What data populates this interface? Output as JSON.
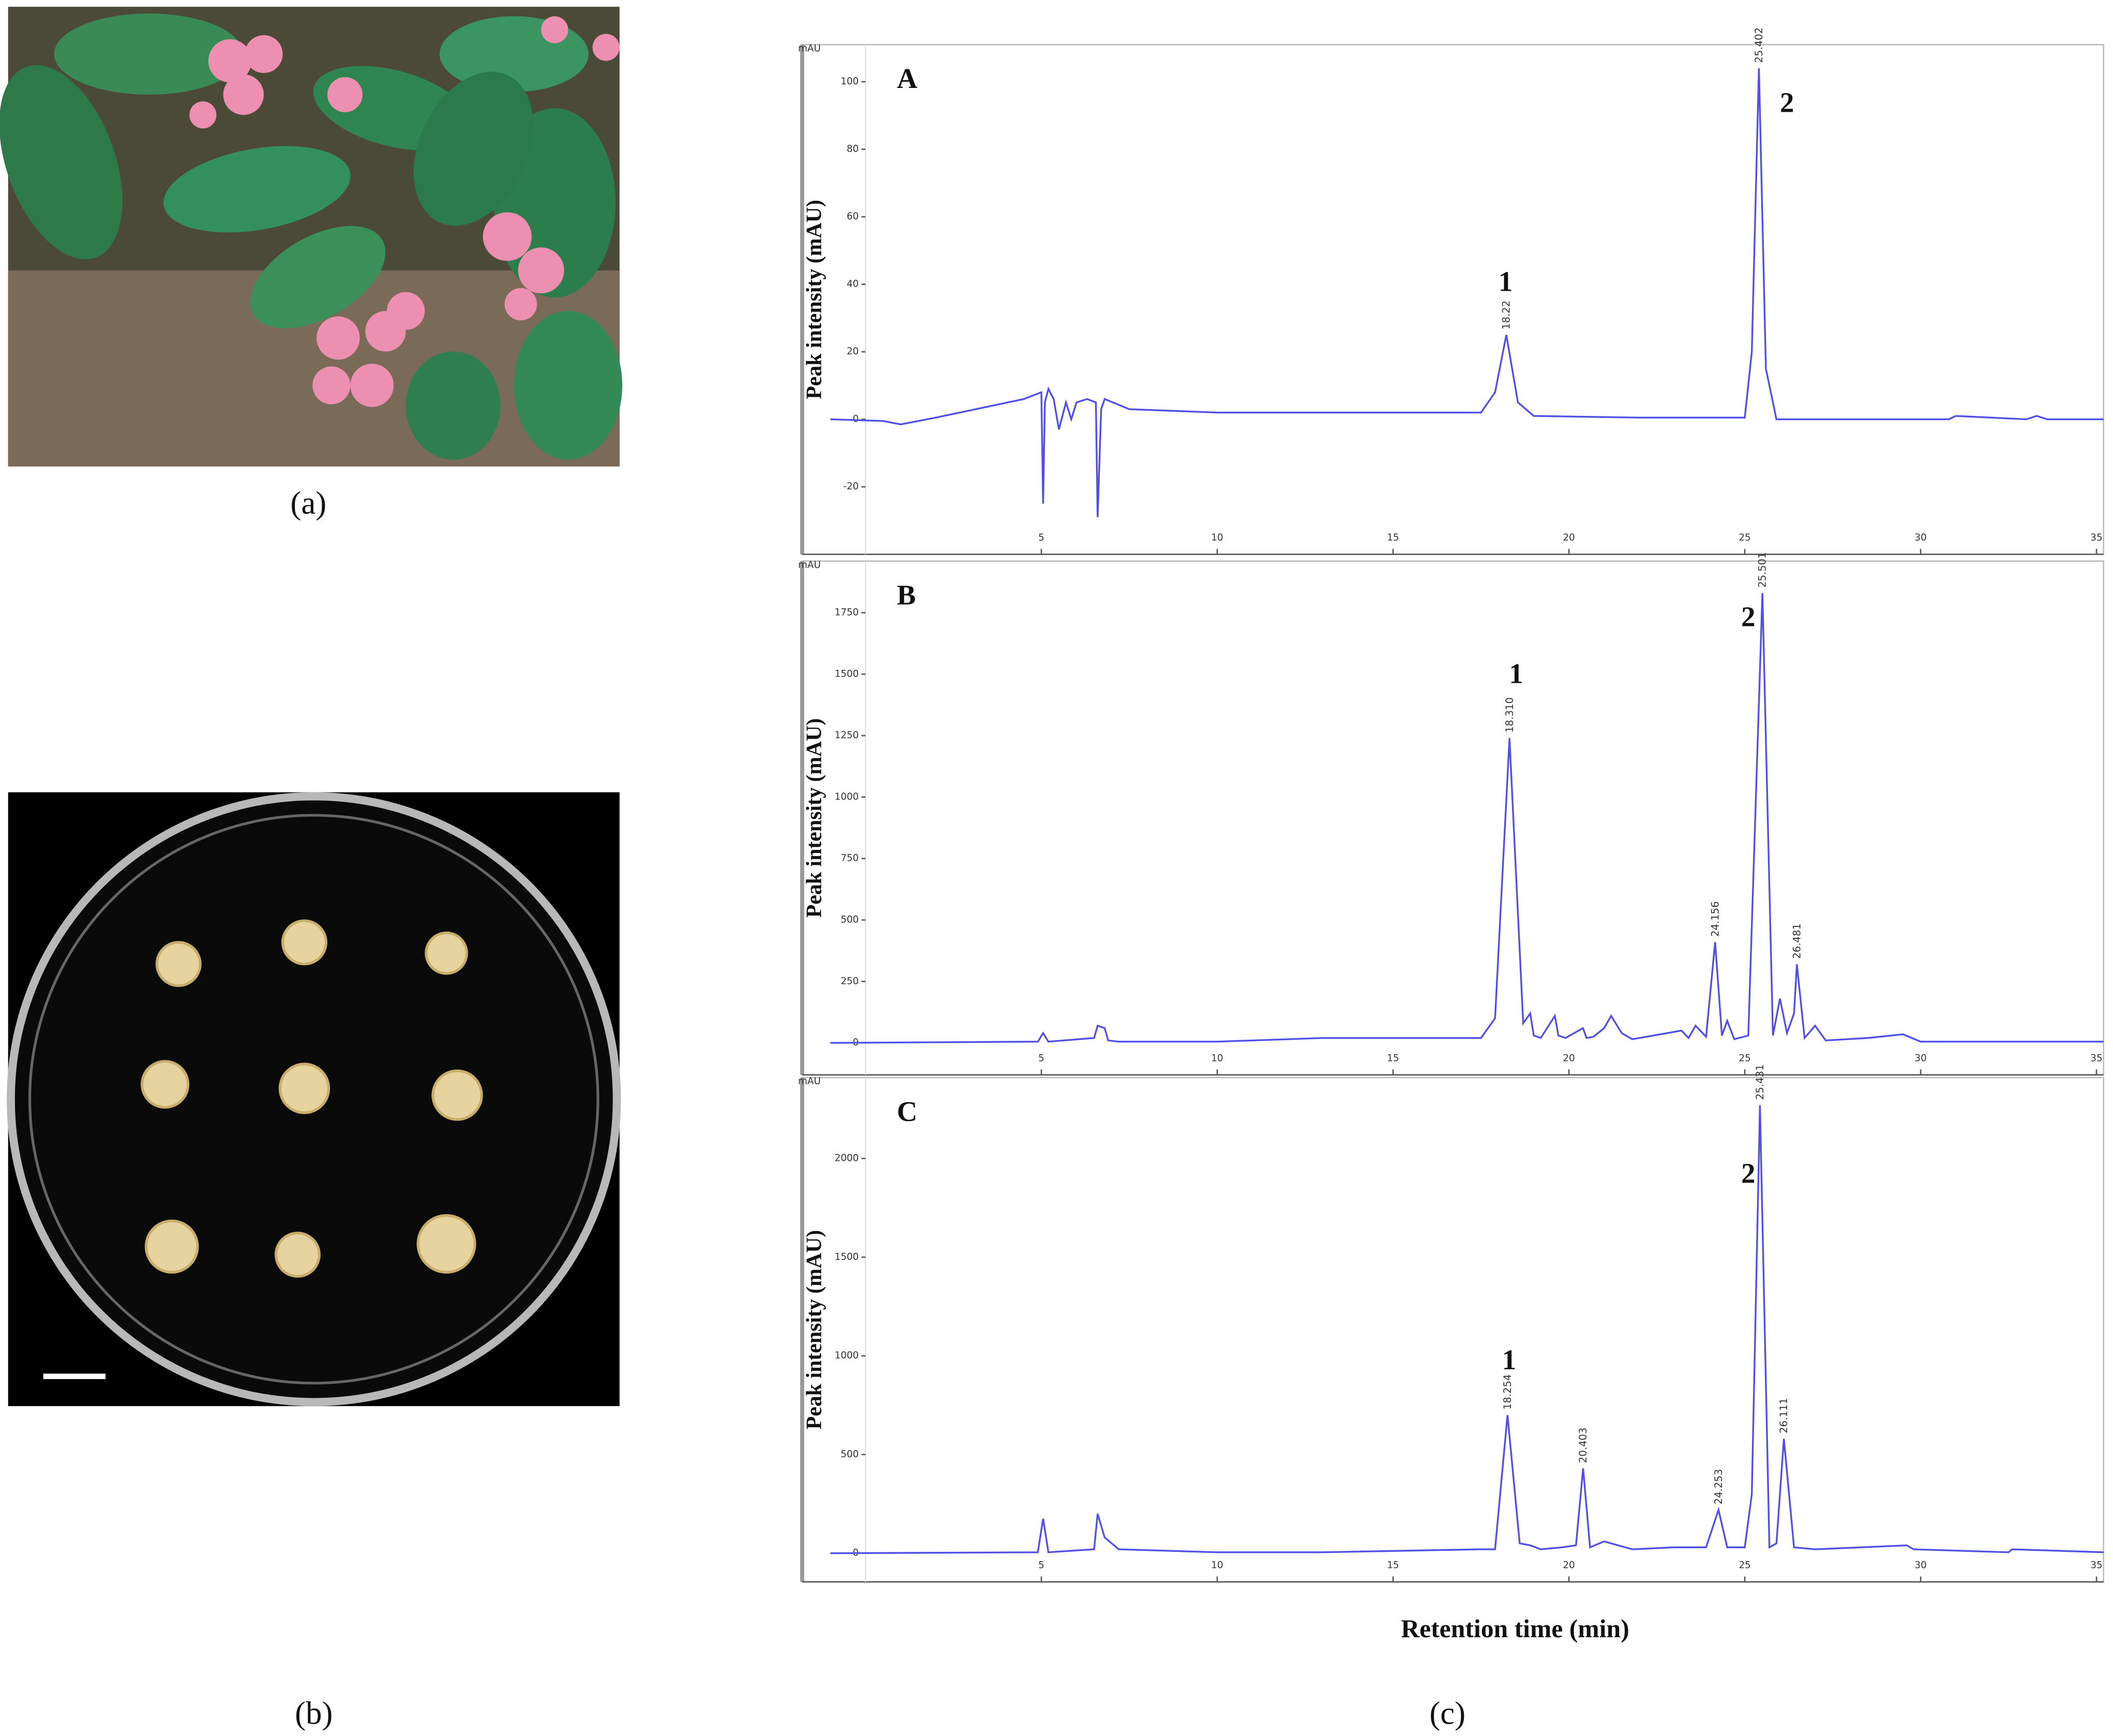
{
  "chart_data": [
    {
      "type": "line",
      "title": "A",
      "unit": "mAU",
      "y_label": "Peak intensity (mAU)",
      "color": "#5050e8",
      "xlim": [
        -1.8,
        35.2
      ],
      "xticks": [
        5,
        10,
        15,
        20,
        25,
        30,
        35
      ],
      "ylim": [
        -40,
        111
      ],
      "yticks": [
        -20,
        0,
        20,
        40,
        60,
        80,
        100
      ],
      "x": [
        -1,
        0.5,
        1,
        2,
        4.5,
        5,
        5.05,
        5.1,
        5.2,
        5.35,
        5.5,
        5.7,
        5.85,
        6.0,
        6.3,
        6.55,
        6.6,
        6.7,
        6.8,
        7.5,
        10,
        15,
        17.5,
        17.9,
        18.22,
        18.55,
        19,
        22,
        25,
        25.2,
        25.402,
        25.6,
        25.9,
        28,
        30.8,
        31,
        33,
        33.3,
        33.6,
        35.2
      ],
      "values": [
        0,
        -0.5,
        -1.5,
        0.5,
        6,
        8,
        -25,
        5,
        9,
        6,
        -3,
        5,
        0,
        5,
        6,
        5,
        -29,
        3,
        6,
        3,
        2,
        2,
        2,
        8,
        25,
        5,
        1,
        0.5,
        0.5,
        20,
        104,
        15,
        0,
        0,
        0,
        1,
        0,
        1,
        0,
        0
      ],
      "peak_labels": [
        {
          "x": 18.22,
          "y": 25,
          "label": "18.22"
        },
        {
          "x": 25.402,
          "y": 104,
          "label": "25.402"
        }
      ],
      "annotations": [
        {
          "text": "1",
          "x": 18.2,
          "y": 38
        },
        {
          "text": "2",
          "x": 26.2,
          "y": 91
        }
      ]
    },
    {
      "type": "line",
      "title": "B",
      "unit": "mAU",
      "y_label": "Peak intensity (mAU)",
      "color": "#5050e8",
      "xlim": [
        -1.8,
        35.2
      ],
      "xticks": [
        5,
        10,
        15,
        20,
        25,
        30,
        35
      ],
      "ylim": [
        -130,
        1960
      ],
      "yticks": [
        0,
        250,
        500,
        750,
        1000,
        1250,
        1500,
        1750
      ],
      "x": [
        -1,
        4.9,
        5.05,
        5.2,
        6.5,
        6.6,
        6.8,
        6.9,
        7.2,
        10,
        13,
        17.5,
        17.9,
        18.31,
        18.7,
        18.9,
        19.0,
        19.2,
        19.6,
        19.7,
        19.9,
        20.4,
        20.5,
        20.7,
        21.0,
        21.2,
        21.5,
        21.8,
        23.2,
        23.4,
        23.6,
        23.9,
        24.156,
        24.35,
        24.5,
        24.7,
        25.1,
        25.501,
        25.8,
        26.0,
        26.2,
        26.4,
        26.481,
        26.7,
        27.0,
        27.3,
        28.5,
        29.5,
        30,
        33,
        35.2
      ],
      "values": [
        0,
        5,
        40,
        5,
        20,
        70,
        60,
        10,
        5,
        5,
        20,
        20,
        100,
        1240,
        80,
        120,
        30,
        20,
        110,
        30,
        20,
        60,
        20,
        25,
        60,
        110,
        40,
        15,
        50,
        20,
        70,
        25,
        410,
        30,
        90,
        15,
        30,
        1830,
        30,
        180,
        40,
        120,
        320,
        20,
        70,
        10,
        20,
        35,
        5,
        5,
        5
      ],
      "peak_labels": [
        {
          "x": 18.31,
          "y": 1240,
          "label": "18.310"
        },
        {
          "x": 24.156,
          "y": 410,
          "label": "24.156"
        },
        {
          "x": 25.501,
          "y": 1830,
          "label": "25.501"
        },
        {
          "x": 26.481,
          "y": 320,
          "label": "26.481"
        }
      ],
      "annotations": [
        {
          "text": "1",
          "x": 18.5,
          "y": 1464
        },
        {
          "text": "2",
          "x": 25.1,
          "y": 1695
        }
      ]
    },
    {
      "type": "line",
      "title": "C",
      "unit": "mAU",
      "y_label": "Peak intensity (mAU)",
      "x_label": "Retention time (min)",
      "color": "#5050e8",
      "xlim": [
        -1.8,
        35.2
      ],
      "xticks": [
        5,
        10,
        15,
        20,
        25,
        30,
        35
      ],
      "ylim": [
        -145,
        2410
      ],
      "yticks": [
        0,
        500,
        1000,
        1500,
        2000
      ],
      "x": [
        -1,
        4.9,
        5.05,
        5.2,
        6.5,
        6.6,
        6.8,
        7.2,
        10,
        13,
        17.5,
        17.9,
        18.254,
        18.6,
        18.9,
        19.2,
        19.8,
        20.2,
        20.403,
        20.6,
        21.0,
        21.2,
        21.8,
        23.0,
        23.9,
        24.253,
        24.5,
        25.0,
        25.2,
        25.431,
        25.7,
        25.9,
        26.111,
        26.4,
        27,
        29.6,
        29.8,
        32.5,
        32.6,
        35.2
      ],
      "values": [
        0,
        5,
        175,
        5,
        20,
        200,
        80,
        20,
        5,
        5,
        20,
        20,
        700,
        50,
        40,
        20,
        30,
        40,
        430,
        30,
        60,
        50,
        20,
        30,
        30,
        220,
        30,
        30,
        300,
        2270,
        30,
        50,
        580,
        30,
        20,
        40,
        20,
        5,
        20,
        5
      ],
      "peak_labels": [
        {
          "x": 18.254,
          "y": 700,
          "label": "18.254"
        },
        {
          "x": 20.403,
          "y": 430,
          "label": "20.403"
        },
        {
          "x": 24.253,
          "y": 220,
          "label": "24.253"
        },
        {
          "x": 25.431,
          "y": 2270,
          "label": "25.431"
        },
        {
          "x": 26.111,
          "y": 580,
          "label": "26.111"
        }
      ],
      "annotations": [
        {
          "text": "1",
          "x": 18.3,
          "y": 932
        },
        {
          "text": "2",
          "x": 25.1,
          "y": 1877
        }
      ]
    }
  ],
  "captions": {
    "a": "(a)",
    "b": "(b)",
    "c": "(c)"
  }
}
